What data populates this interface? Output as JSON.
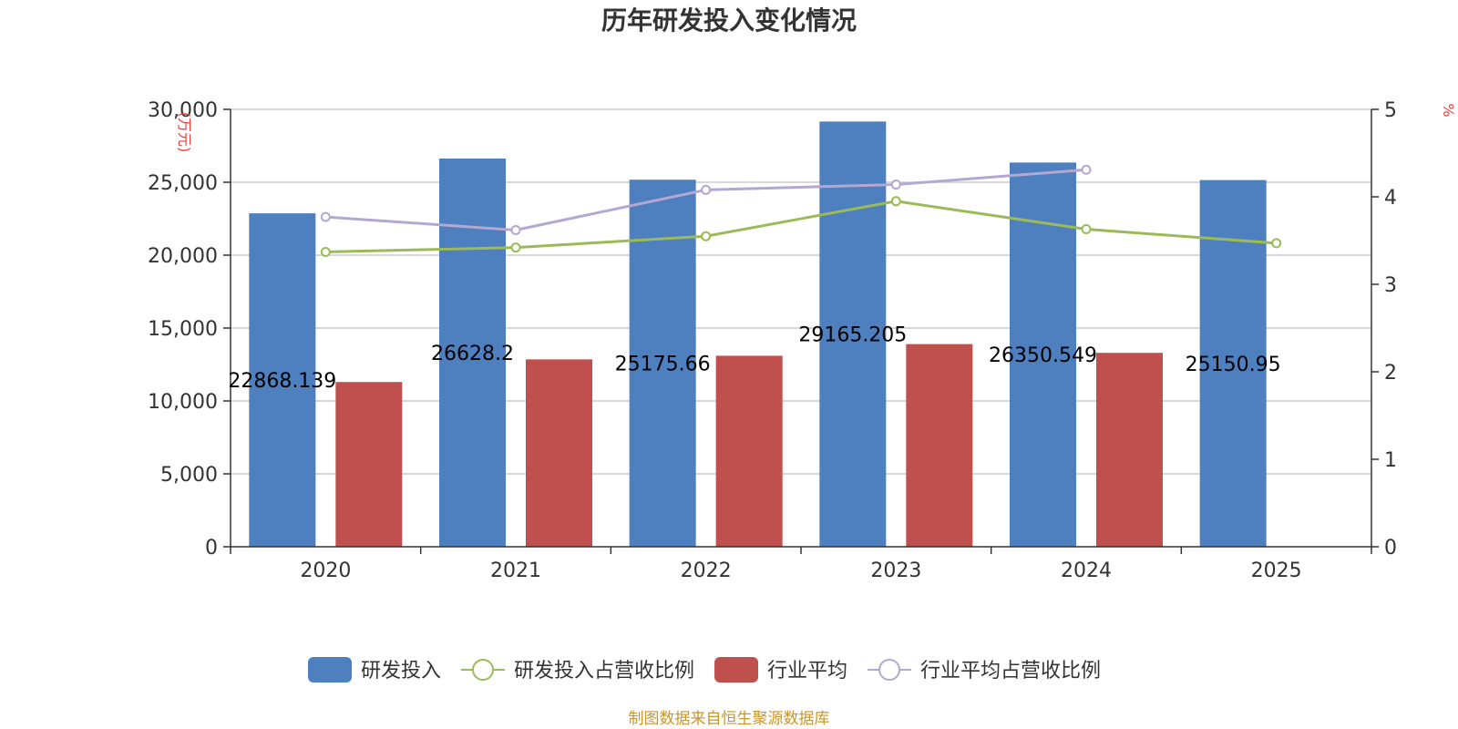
{
  "chart_data": {
    "type": "bar",
    "title": "历年研发投入变化情况",
    "categories": [
      "2020",
      "2021",
      "2022",
      "2023",
      "2024",
      "2025"
    ],
    "y_left": {
      "unit_label": "(万元)",
      "ticks": [
        "0",
        "5,000",
        "10,000",
        "15,000",
        "20,000",
        "25,000",
        "30,000"
      ],
      "ylim": [
        0,
        30000
      ]
    },
    "y_right": {
      "unit_label": "%",
      "ticks": [
        "0",
        "1",
        "2",
        "3",
        "4",
        "5"
      ],
      "ylim": [
        0,
        5
      ]
    },
    "series": [
      {
        "name": "研发投入",
        "type": "bar",
        "axis": "left",
        "color": "#4e7fbf",
        "values": [
          22868.139,
          26628.2,
          25175.66,
          29165.205,
          26350.549,
          25150.95
        ],
        "labels": [
          "22868.139",
          "26628.2",
          "25175.66",
          "29165.205",
          "26350.549",
          "25150.95"
        ]
      },
      {
        "name": "研发投入占营收比例",
        "type": "line",
        "axis": "right",
        "color": "#9bbb59",
        "values": [
          3.37,
          3.42,
          3.55,
          3.95,
          3.63,
          3.47
        ]
      },
      {
        "name": "行业平均",
        "type": "bar",
        "axis": "left",
        "color": "#c0504d",
        "values": [
          11300,
          12850,
          13100,
          13900,
          13300,
          null
        ]
      },
      {
        "name": "行业平均占营收比例",
        "type": "line",
        "axis": "right",
        "color": "#b3a8d1",
        "values": [
          3.77,
          3.62,
          4.08,
          4.14,
          4.31,
          null
        ]
      }
    ],
    "legend_position": "bottom",
    "source": "制图数据来自恒生聚源数据库"
  }
}
